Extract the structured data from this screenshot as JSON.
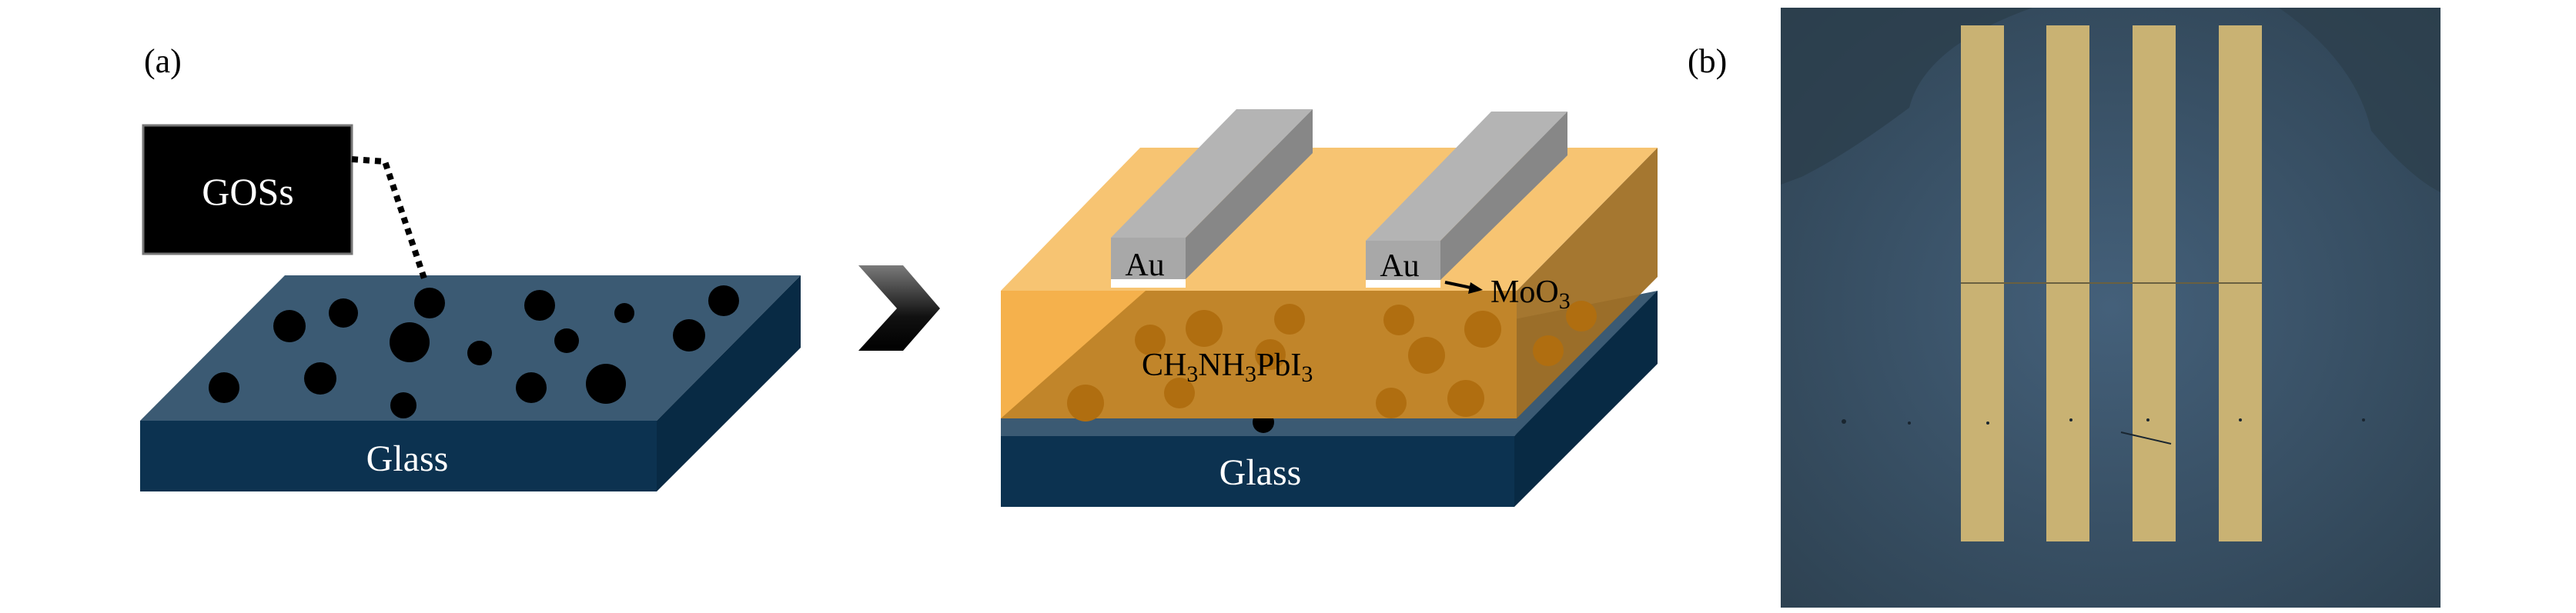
{
  "panel_a": {
    "label": "(a)",
    "gos_box_label": "GOSs",
    "substrate_label": "Glass",
    "device": {
      "electrode_label_1": "Au",
      "electrode_label_2": "Au",
      "interlayer_label": {
        "base": "MoO",
        "sub": "3"
      },
      "perovskite_label": [
        {
          "t": "CH",
          "sub": false
        },
        {
          "t": "3",
          "sub": true
        },
        {
          "t": "NH",
          "sub": false
        },
        {
          "t": "3",
          "sub": true
        },
        {
          "t": "PbI",
          "sub": false
        },
        {
          "t": "3",
          "sub": true
        }
      ],
      "substrate_label": "Glass"
    },
    "arrow_icon": "chevron-right-icon"
  },
  "panel_b": {
    "label": "(b)",
    "electrode_count": 4
  },
  "colors": {
    "glass_top": "#3b5a73",
    "glass_front": "#0c3250",
    "glass_side": "#082a44",
    "perovskite_top": "#f7c472",
    "perovskite_front": "#f5b14c",
    "perovskite_inner": "#c1852a",
    "perovskite_dot": "#b06e10",
    "au_top": "#b4b4b4",
    "au_side": "#878787",
    "gos_dot": "#000000",
    "photo_bg": "#3a5163",
    "photo_stripe": "#c9b273"
  }
}
